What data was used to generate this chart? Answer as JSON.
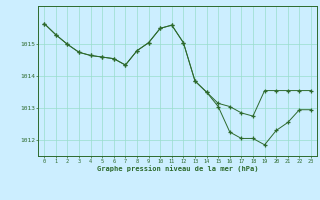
{
  "line1_x": [
    0,
    1,
    2,
    3,
    4,
    5,
    6,
    7,
    8,
    9,
    10,
    11,
    12,
    13,
    14,
    15,
    16,
    17,
    18,
    19,
    20,
    21,
    22,
    23
  ],
  "line1_y": [
    1015.65,
    1015.3,
    1015.0,
    1014.75,
    1014.65,
    1014.6,
    1014.55,
    1014.35,
    1014.8,
    1015.05,
    1015.5,
    1015.6,
    1015.05,
    1013.85,
    1013.5,
    1013.05,
    1012.25,
    1012.05,
    1012.05,
    1011.85,
    1012.3,
    1012.55,
    1012.95,
    1012.95
  ],
  "line2_x": [
    0,
    1,
    2,
    3,
    4,
    5,
    6,
    7,
    8,
    9,
    10,
    11,
    12,
    13,
    14,
    15,
    16,
    17,
    18,
    19,
    20,
    21,
    22,
    23
  ],
  "line2_y": [
    1015.65,
    1015.3,
    1015.0,
    1014.75,
    1014.65,
    1014.6,
    1014.55,
    1014.35,
    1014.8,
    1015.05,
    1015.5,
    1015.6,
    1015.05,
    1013.85,
    1013.5,
    1013.15,
    1013.05,
    1012.85,
    1012.75,
    1013.55,
    1013.55,
    1013.55,
    1013.55,
    1013.55
  ],
  "line_color": "#2d6a2d",
  "background_color": "#cceeff",
  "grid_color": "#99ddcc",
  "xlabel": "Graphe pression niveau de la mer (hPa)",
  "ylim": [
    1011.5,
    1016.2
  ],
  "xlim": [
    -0.5,
    23.5
  ],
  "yticks": [
    1012,
    1013,
    1014,
    1015
  ],
  "xticks": [
    0,
    1,
    2,
    3,
    4,
    5,
    6,
    7,
    8,
    9,
    10,
    11,
    12,
    13,
    14,
    15,
    16,
    17,
    18,
    19,
    20,
    21,
    22,
    23
  ]
}
